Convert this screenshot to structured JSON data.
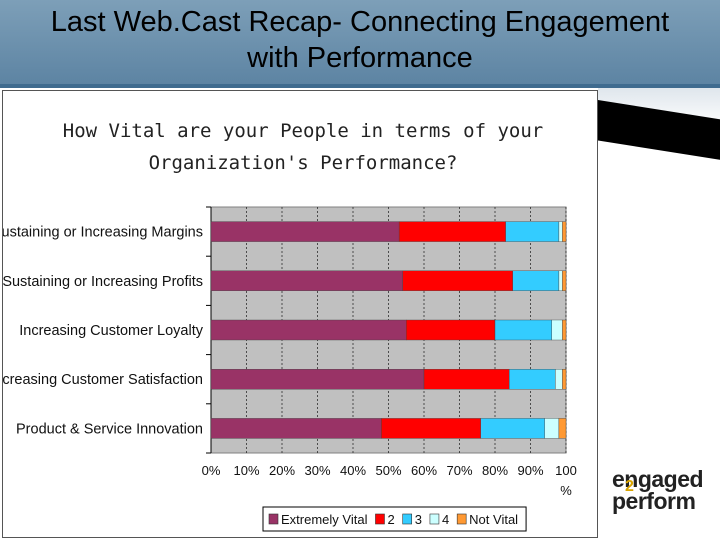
{
  "slide": {
    "title_line1": "Last Web.Cast Recap- Connecting Engagement",
    "title_line2": "with Performance"
  },
  "logo": {
    "line1": "engaged",
    "line2": "perform",
    "mark": "2"
  },
  "chart_data": {
    "type": "bar",
    "orientation": "horizontal",
    "stacked": true,
    "title_line1": "How Vital are your People in terms of your",
    "title_line2": "Organization's Performance?",
    "categories": [
      "Sustaining or Increasing Margins",
      "Sustaining or Increasing Profits",
      "Increasing Customer Loyalty",
      "Increasing Customer Satisfaction",
      "Product & Service Innovation"
    ],
    "series": [
      {
        "name": "Extremely Vital",
        "color": "#993366",
        "values": [
          53,
          54,
          55,
          60,
          48
        ]
      },
      {
        "name": "2",
        "color": "#ff0000",
        "values": [
          30,
          31,
          25,
          24,
          28
        ]
      },
      {
        "name": "3",
        "color": "#33ccff",
        "values": [
          15,
          13,
          16,
          13,
          18
        ]
      },
      {
        "name": "4",
        "color": "#ccffff",
        "values": [
          1,
          1,
          3,
          2,
          4
        ]
      },
      {
        "name": "Not Vital",
        "color": "#ff9933",
        "values": [
          1,
          1,
          1,
          1,
          2
        ]
      }
    ],
    "xlim": [
      0,
      100
    ],
    "xticks": [
      "0%",
      "10%",
      "20%",
      "30%",
      "40%",
      "50%",
      "60%",
      "70%",
      "80%",
      "90%",
      "100"
    ],
    "xtick_suffix_last": "%",
    "grid": true,
    "plot_background": "#c0c0c0",
    "legend_position": "bottom"
  }
}
